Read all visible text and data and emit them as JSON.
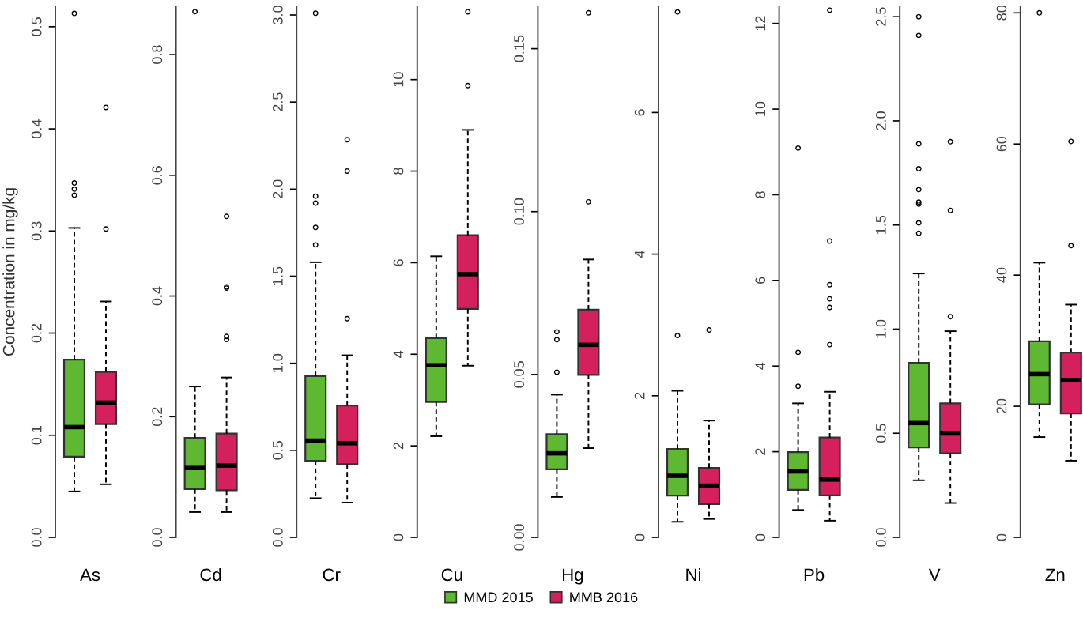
{
  "chart_data": [
    {
      "type": "box",
      "categories": [
        "As"
      ],
      "ylabel": "Concentration in mg/kg",
      "legend": "bottom",
      "ylim": [
        0,
        0.52
      ],
      "yticks": [
        {
          "value": 0,
          "label": "0.0"
        },
        0.1,
        0.2,
        0.3,
        0.4,
        0.5
      ],
      "series": [
        {
          "name": "MMD 2015",
          "color": "#5fb832",
          "boxes": [
            {
              "low": 0.045,
              "q1": 0.079,
              "median": 0.108,
              "q3": 0.174,
              "high": 0.303,
              "outliers": [
                0.335,
                0.341,
                0.347,
                0.513
              ]
            }
          ]
        },
        {
          "name": "MMB 2016",
          "color": "#d4215e",
          "boxes": [
            {
              "low": 0.052,
              "q1": 0.111,
              "median": 0.132,
              "q3": 0.162,
              "high": 0.231,
              "outliers": [
                0.302,
                0.421
              ]
            }
          ]
        }
      ]
    },
    {
      "type": "box",
      "categories": [
        "Cd"
      ],
      "ylim": [
        0,
        0.88
      ],
      "yticks": [
        {
          "value": 0,
          "label": "0.0"
        },
        0.2,
        0.4,
        0.6,
        0.8
      ],
      "series": [
        {
          "color": "#5fb832",
          "boxes": [
            {
              "low": 0.042,
              "q1": 0.08,
              "median": 0.115,
              "q3": 0.165,
              "high": 0.25,
              "outliers": [
                0.871
              ]
            }
          ]
        },
        {
          "color": "#d4215e",
          "boxes": [
            {
              "low": 0.042,
              "q1": 0.078,
              "median": 0.119,
              "q3": 0.172,
              "high": 0.265,
              "outliers": [
                0.328,
                0.333,
                0.413,
                0.415,
                0.532
              ]
            }
          ]
        }
      ]
    },
    {
      "type": "box",
      "categories": [
        "Cr"
      ],
      "ylim": [
        0,
        3.05
      ],
      "yticks": [
        {
          "value": 0,
          "label": "0.0"
        },
        0.5,
        {
          "value": 1,
          "label": "1.0"
        },
        1.5,
        {
          "value": 2,
          "label": "2.0"
        },
        2.5,
        {
          "value": 3,
          "label": "3.0"
        }
      ],
      "series": [
        {
          "color": "#5fb832",
          "boxes": [
            {
              "low": 0.225,
              "q1": 0.44,
              "median": 0.556,
              "q3": 0.926,
              "high": 1.58,
              "outliers": [
                1.68,
                1.78,
                1.92,
                1.96,
                3.01
              ]
            }
          ]
        },
        {
          "color": "#d4215e",
          "boxes": [
            {
              "low": 0.2,
              "q1": 0.42,
              "median": 0.541,
              "q3": 0.757,
              "high": 1.046,
              "outliers": [
                1.256,
                2.104,
                2.284
              ]
            }
          ]
        }
      ]
    },
    {
      "type": "box",
      "categories": [
        "Cu"
      ],
      "ylim": [
        0,
        11.6
      ],
      "yticks": [
        0,
        2,
        4,
        6,
        8,
        10
      ],
      "series": [
        {
          "color": "#5fb832",
          "boxes": [
            {
              "low": 2.21,
              "q1": 2.96,
              "median": 3.76,
              "q3": 4.35,
              "high": 6.14
            }
          ]
        },
        {
          "color": "#d4215e",
          "boxes": [
            {
              "low": 3.75,
              "q1": 4.99,
              "median": 5.75,
              "q3": 6.6,
              "high": 8.9,
              "outliers": [
                9.87,
                11.48
              ]
            }
          ]
        }
      ]
    },
    {
      "type": "box",
      "categories": [
        "Hg"
      ],
      "ylim": [
        0,
        0.163
      ],
      "yticks": [
        {
          "value": 0,
          "label": "0.00"
        },
        0.05,
        {
          "value": 0.1,
          "label": "0.10"
        },
        0.15
      ],
      "series": [
        {
          "color": "#5fb832",
          "boxes": [
            {
              "low": 0.0124,
              "q1": 0.0209,
              "median": 0.0258,
              "q3": 0.0317,
              "high": 0.0438,
              "outliers": [
                0.0507,
                0.0607,
                0.0631
              ]
            }
          ]
        },
        {
          "color": "#d4215e",
          "boxes": [
            {
              "low": 0.0274,
              "q1": 0.0499,
              "median": 0.0591,
              "q3": 0.0699,
              "high": 0.0853,
              "outliers": [
                0.103,
                0.161
              ]
            }
          ]
        }
      ]
    },
    {
      "type": "box",
      "categories": [
        "Ni"
      ],
      "ylim": [
        0,
        7.5
      ],
      "yticks": [
        0,
        2,
        4,
        6
      ],
      "series": [
        {
          "color": "#5fb832",
          "boxes": [
            {
              "low": 0.22,
              "q1": 0.59,
              "median": 0.87,
              "q3": 1.25,
              "high": 2.07,
              "outliers": [
                2.85,
                7.42
              ]
            }
          ]
        },
        {
          "color": "#d4215e",
          "boxes": [
            {
              "low": 0.26,
              "q1": 0.47,
              "median": 0.73,
              "q3": 0.98,
              "high": 1.65,
              "outliers": [
                2.93
              ]
            }
          ]
        }
      ]
    },
    {
      "type": "box",
      "categories": [
        "Pb"
      ],
      "ylim": [
        0,
        12.4
      ],
      "yticks": [
        0,
        2,
        4,
        6,
        8,
        10,
        12
      ],
      "series": [
        {
          "color": "#5fb832",
          "boxes": [
            {
              "low": 0.64,
              "q1": 1.11,
              "median": 1.54,
              "q3": 1.99,
              "high": 3.13,
              "outliers": [
                3.53,
                4.32,
                9.09
              ]
            }
          ]
        },
        {
          "color": "#d4215e",
          "boxes": [
            {
              "low": 0.39,
              "q1": 0.98,
              "median": 1.35,
              "q3": 2.33,
              "high": 3.4,
              "outliers": [
                4.5,
                5.37,
                5.57,
                5.9,
                6.92,
                12.31
              ]
            }
          ]
        }
      ]
    },
    {
      "type": "box",
      "categories": [
        "V"
      ],
      "ylim": [
        0,
        2.55
      ],
      "yticks": [
        {
          "value": 0,
          "label": "0.0"
        },
        0.5,
        {
          "value": 1,
          "label": "1.0"
        },
        1.5,
        {
          "value": 2,
          "label": "2.0"
        },
        2.5
      ],
      "series": [
        {
          "color": "#5fb832",
          "boxes": [
            {
              "low": 0.274,
              "q1": 0.432,
              "median": 0.549,
              "q3": 0.838,
              "high": 1.267,
              "outliers": [
                1.46,
                1.51,
                1.6,
                1.61,
                1.67,
                1.77,
                1.89,
                2.41,
                2.5
              ]
            }
          ]
        },
        {
          "color": "#d4215e",
          "boxes": [
            {
              "low": 0.165,
              "q1": 0.404,
              "median": 0.499,
              "q3": 0.644,
              "high": 0.99,
              "outliers": [
                1.06,
                1.57,
                1.9
              ]
            }
          ]
        }
      ]
    },
    {
      "type": "box",
      "categories": [
        "Zn"
      ],
      "ylim": [
        0,
        81
      ],
      "yticks": [
        0,
        20,
        40,
        60,
        80
      ],
      "series": [
        {
          "color": "#5fb832",
          "boxes": [
            {
              "low": 15.3,
              "q1": 20.3,
              "median": 24.9,
              "q3": 29.9,
              "high": 41.9,
              "outliers": [
                80.0
              ]
            }
          ]
        },
        {
          "color": "#d4215e",
          "boxes": [
            {
              "low": 11.7,
              "q1": 18.9,
              "median": 24.0,
              "q3": 28.2,
              "high": 35.5,
              "outliers": [
                44.5,
                60.4
              ]
            }
          ]
        }
      ]
    }
  ]
}
